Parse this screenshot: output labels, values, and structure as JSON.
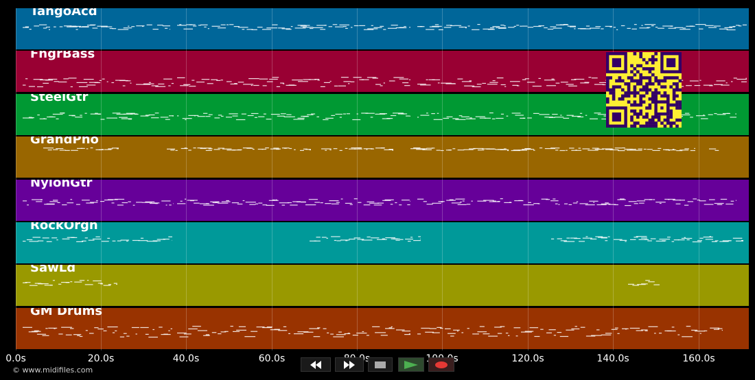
{
  "tracks": [
    {
      "name": "TangoAcd",
      "color": "#006699"
    },
    {
      "name": "FngrBass",
      "color": "#990033"
    },
    {
      "name": "SteelGtr",
      "color": "#009933"
    },
    {
      "name": "GrandPno",
      "color": "#996600"
    },
    {
      "name": "NylonGtr",
      "color": "#660099"
    },
    {
      "name": "RockOrgn",
      "color": "#009999"
    },
    {
      "name": "SawLd",
      "color": "#999900"
    },
    {
      "name": "GM Drums",
      "color": "#993300"
    }
  ],
  "timeline": {
    "ticks": [
      "0.0s",
      "20.0s",
      "40.0s",
      "60.0s",
      "80.0s",
      "100.0s",
      "120.0s",
      "140.0s",
      "160.0s"
    ]
  },
  "transport": {
    "rewind_icon": "rewind-icon",
    "forward_icon": "fast-forward-icon",
    "stop_icon": "stop-icon",
    "play_icon": "play-icon",
    "record_icon": "record-icon",
    "play_color": "#4caf50",
    "record_color": "#e53935"
  },
  "copyright": "© www.midifiles.com",
  "qr": {
    "fg": "#330066",
    "bg": "#ffee33"
  }
}
